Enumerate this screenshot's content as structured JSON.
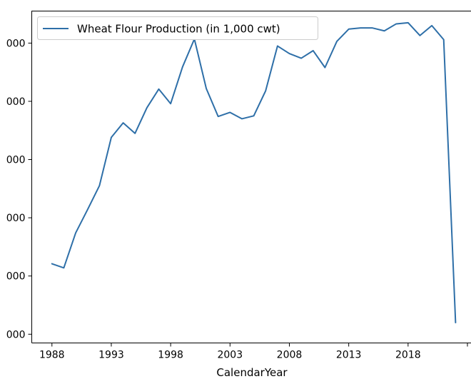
{
  "chart_data": {
    "type": "line",
    "title": "",
    "xlabel": "CalendarYear",
    "ylabel": "",
    "legend": {
      "placement": "top-left"
    },
    "grid": false,
    "colors": {
      "series": "#2e6fa8",
      "axes": "#000000"
    },
    "x_ticks": [
      1988,
      1993,
      1998,
      2003,
      2008,
      2013,
      2018,
      2023
    ],
    "x_tick_labels": [
      "1988",
      "1993",
      "1998",
      "2003",
      "2008",
      "2013",
      "2018",
      ""
    ],
    "y_ticks": [
      0,
      1,
      2,
      3,
      4,
      5
    ],
    "y_tick_labels": [
      "000",
      "000",
      "000",
      "000",
      "000",
      "000"
    ],
    "xlim": [
      1986.3,
      2023.3
    ],
    "ylim": [
      -0.15,
      5.55
    ],
    "series": [
      {
        "name": "Wheat Flour Production (in 1,000 cwt)",
        "x": [
          1988,
          1989,
          1990,
          1991,
          1992,
          1993,
          1994,
          1995,
          1996,
          1997,
          1998,
          1999,
          2000,
          2001,
          2002,
          2003,
          2004,
          2005,
          2006,
          2007,
          2008,
          2009,
          2010,
          2011,
          2012,
          2013,
          2014,
          2015,
          2016,
          2017,
          2018,
          2019,
          2020,
          2021,
          2022
        ],
        "y": [
          1.21,
          1.14,
          1.74,
          2.14,
          2.55,
          3.38,
          3.63,
          3.45,
          3.89,
          4.21,
          3.96,
          4.59,
          5.07,
          4.22,
          3.74,
          3.81,
          3.7,
          3.75,
          4.18,
          4.95,
          4.82,
          4.74,
          4.87,
          4.58,
          5.03,
          5.24,
          5.26,
          5.26,
          5.21,
          5.33,
          5.35,
          5.13,
          5.3,
          5.06,
          0.2
        ]
      }
    ]
  }
}
